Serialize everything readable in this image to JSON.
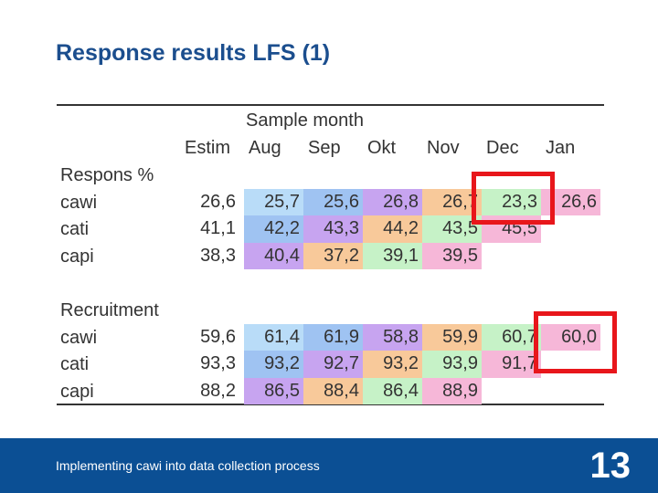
{
  "title": "Response results LFS (1)",
  "table": {
    "group_header": "Sample month",
    "columns": [
      "Estim",
      "Aug",
      "Sep",
      "Okt",
      "Nov",
      "Dec",
      "Jan"
    ],
    "sections": [
      {
        "label": "Respons %",
        "rows": [
          {
            "name": "cawi",
            "values": [
              "26,6",
              "25,7",
              "25,6",
              "26,8",
              "26,7",
              "23,3",
              "26,6"
            ],
            "colors": [
              "",
              "#b9dcf8",
              "#9fc3f2",
              "#c7a4f0",
              "#f8c99a",
              "#c6f2c7",
              "#f6b7d8"
            ]
          },
          {
            "name": "cati",
            "values": [
              "41,1",
              "42,2",
              "43,3",
              "44,2",
              "43,5",
              "45,5",
              ""
            ],
            "colors": [
              "",
              "#9fc3f2",
              "#c7a4f0",
              "#f8c99a",
              "#c6f2c7",
              "#f6b7d8",
              ""
            ]
          },
          {
            "name": "capi",
            "values": [
              "38,3",
              "40,4",
              "37,2",
              "39,1",
              "39,5",
              "",
              ""
            ],
            "colors": [
              "",
              "#c7a4f0",
              "#f8c99a",
              "#c6f2c7",
              "#f6b7d8",
              "",
              ""
            ]
          }
        ]
      },
      {
        "label": "Recruitment",
        "rows": [
          {
            "name": "cawi",
            "values": [
              "59,6",
              "61,4",
              "61,9",
              "58,8",
              "59,9",
              "60,7",
              "60,0"
            ],
            "colors": [
              "",
              "#b9dcf8",
              "#9fc3f2",
              "#c7a4f0",
              "#f8c99a",
              "#c6f2c7",
              "#f6b7d8"
            ]
          },
          {
            "name": "cati",
            "values": [
              "93,3",
              "93,2",
              "92,7",
              "93,2",
              "93,9",
              "91,7",
              ""
            ],
            "colors": [
              "",
              "#9fc3f2",
              "#c7a4f0",
              "#f8c99a",
              "#c6f2c7",
              "#f6b7d8",
              ""
            ]
          },
          {
            "name": "capi",
            "values": [
              "88,2",
              "86,5",
              "88,4",
              "86,4",
              "88,9",
              "",
              ""
            ],
            "colors": [
              "",
              "#c7a4f0",
              "#f8c99a",
              "#c6f2c7",
              "#f6b7d8",
              "",
              ""
            ]
          }
        ]
      }
    ]
  },
  "footer": {
    "text": "Implementing cawi into data collection process",
    "page_number": "13"
  },
  "colors": {
    "title": "#1b4e8e",
    "footer_bg": "#0b4f94",
    "highlight": "#e8161b"
  }
}
